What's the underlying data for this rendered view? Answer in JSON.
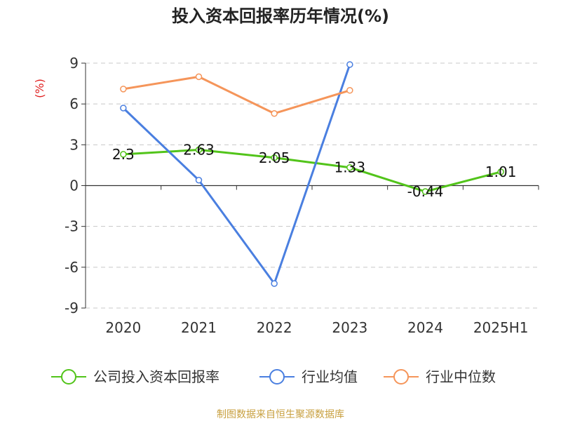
{
  "chart_data": {
    "type": "line",
    "title": "投入资本回报率历年情况(%)",
    "unit_label": "(%)",
    "categories": [
      "2020",
      "2021",
      "2022",
      "2023",
      "2024",
      "2025H1"
    ],
    "y_ticks": [
      "9",
      "6",
      "3",
      "0",
      "-3",
      "-6",
      "-9"
    ],
    "ylim": [
      -9,
      9
    ],
    "grid": true,
    "legend_position": "bottom",
    "series": [
      {
        "name": "公司投入资本回报率",
        "color": "#52c41a",
        "values": [
          2.3,
          2.63,
          2.05,
          1.33,
          -0.44,
          1.01
        ],
        "labels": [
          "2.3",
          "2.63",
          "2.05",
          "1.33",
          "-0.44",
          "1.01"
        ]
      },
      {
        "name": "行业均值",
        "color": "#4a7fe0",
        "values": [
          5.7,
          0.4,
          -7.2,
          8.9,
          null,
          null
        ]
      },
      {
        "name": "行业中位数",
        "color": "#f5955a",
        "values": [
          7.1,
          8.0,
          5.3,
          7.0,
          null,
          null
        ]
      }
    ],
    "source": "制图数据来自恒生聚源数据库"
  }
}
